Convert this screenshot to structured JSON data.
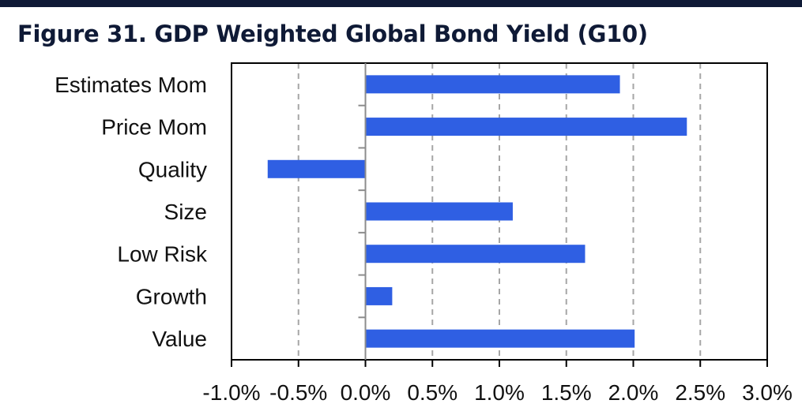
{
  "title": "Figure 31. GDP Weighted Global Bond Yield (G10)",
  "colors": {
    "bar": "#2f5fe3",
    "frame": "#000000",
    "grid": "#a6a6a6",
    "title": "#0f1a36"
  },
  "chart_data": {
    "type": "bar",
    "orientation": "horizontal",
    "categories": [
      "Estimates Mom",
      "Price Mom",
      "Quality",
      "Size",
      "Low Risk",
      "Growth",
      "Value"
    ],
    "values": [
      1.9,
      2.4,
      -0.73,
      1.1,
      1.64,
      0.2,
      2.01
    ],
    "value_unit": "%",
    "xlim": [
      -1.0,
      3.0
    ],
    "xticks": [
      -1.0,
      -0.5,
      0.0,
      0.5,
      1.0,
      1.5,
      2.0,
      2.5,
      3.0
    ],
    "xtick_labels": [
      "-1.0%",
      "-0.5%",
      "0.0%",
      "0.5%",
      "1.0%",
      "1.5%",
      "2.0%",
      "2.5%",
      "3.0%"
    ],
    "grid": "vertical dashed",
    "legend": "none"
  }
}
